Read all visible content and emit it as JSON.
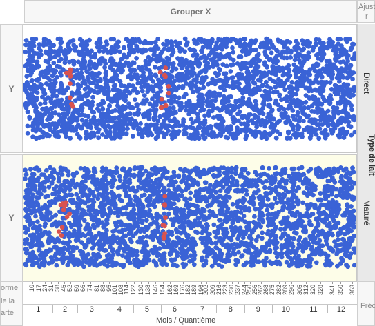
{
  "zones": {
    "group_x": "Grouper X",
    "fit_top": "Ajust",
    "fit_bottom": "r",
    "y_top": "Y",
    "y_bottom": "Y",
    "shape_line1": "orme",
    "shape_line2": "le la",
    "shape_line3": "arte",
    "freq": "Fréc"
  },
  "wrap": {
    "title": "Type de lait",
    "panels": [
      "Direct",
      "Maturé"
    ]
  },
  "colors": {
    "points": "#3a63d6",
    "highlight": "#d9534f",
    "bottom_panel_bg": "#fdfde8",
    "top_panel_bg": "#ffffff"
  },
  "chart_data": {
    "type": "scatter",
    "xlabel": "Mois / Quantième",
    "x_ticks": [
      "10",
      "17",
      "24",
      "31",
      "38",
      "45",
      "52",
      "59",
      "66",
      "74",
      "81",
      "88",
      "95",
      "101",
      "108",
      "114",
      "122",
      "130",
      "138",
      "146",
      "154",
      "162",
      "169",
      "176",
      "182",
      "189",
      "196",
      "202",
      "209",
      "216",
      "223",
      "230",
      "237",
      "244",
      "250",
      "256",
      "262",
      "268",
      "275",
      "282",
      "289",
      "296",
      "305",
      "312",
      "320",
      "328",
      "341",
      "350",
      "363"
    ],
    "months": [
      "1",
      "2",
      "3",
      "4",
      "5",
      "6",
      "7",
      "8",
      "9",
      "10",
      "11",
      "12"
    ],
    "xlim": [
      1,
      365
    ],
    "panels": [
      "Direct",
      "Maturé"
    ],
    "highlight_clusters": [
      {
        "panel": "Direct",
        "x_range": [
          45,
          55
        ]
      },
      {
        "panel": "Direct",
        "x_range": [
          150,
          160
        ]
      },
      {
        "panel": "Maturé",
        "x_range": [
          38,
          52
        ]
      },
      {
        "panel": "Maturé",
        "x_range": [
          152,
          156
        ]
      }
    ]
  }
}
